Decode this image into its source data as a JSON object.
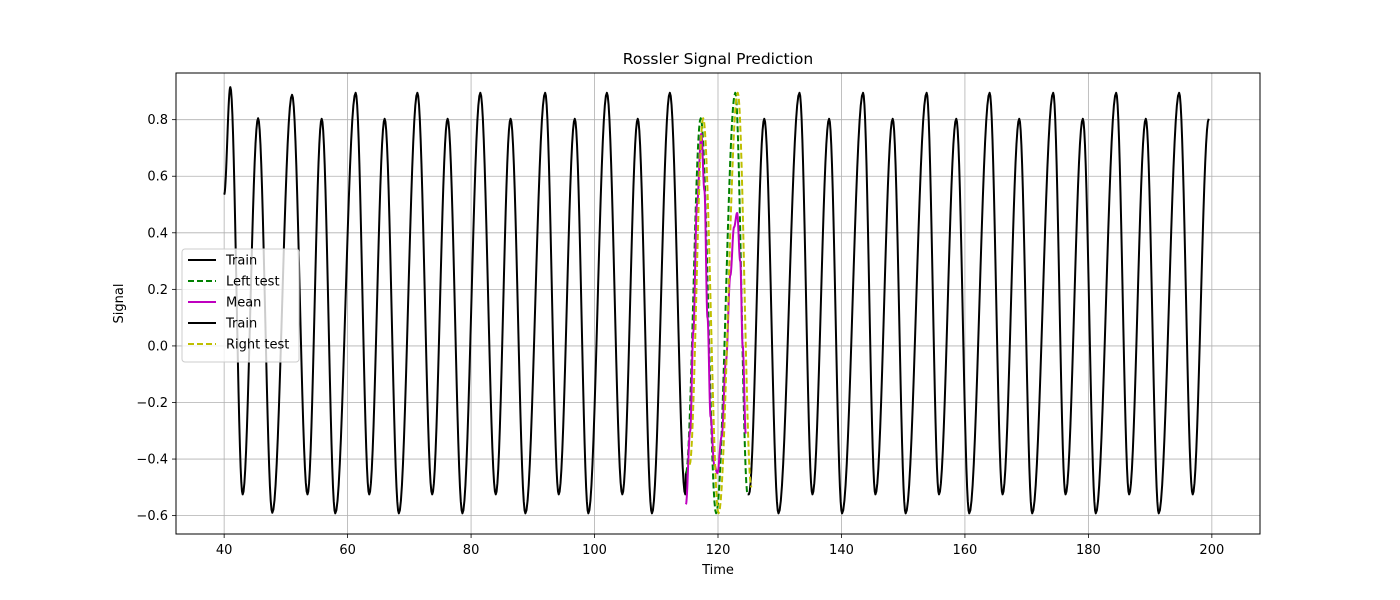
{
  "chart_data": {
    "type": "line",
    "title": "Rossler Signal Prediction",
    "xlabel": "Time",
    "ylabel": "Signal",
    "xlim": [
      32.2,
      207.8
    ],
    "ylim": [
      -0.665,
      0.965
    ],
    "xticks": [
      40,
      60,
      80,
      100,
      120,
      140,
      160,
      180,
      200
    ],
    "yticks": [
      -0.6,
      -0.4,
      -0.2,
      0.0,
      0.2,
      0.4,
      0.6,
      0.8
    ],
    "ytick_labels": [
      "−0.6",
      "−0.4",
      "−0.2",
      "0.0",
      "0.2",
      "0.4",
      "0.6",
      "0.8"
    ],
    "grid": true,
    "legend_position": "center-left",
    "oscillation": {
      "peaks": [
        [
          41,
          0.915
        ],
        [
          45.5,
          0.805
        ],
        [
          51,
          0.888
        ],
        [
          55.8,
          0.803
        ],
        [
          61.3,
          0.895
        ],
        [
          66,
          0.803
        ],
        [
          71.3,
          0.895
        ],
        [
          76.2,
          0.803
        ],
        [
          81.5,
          0.895
        ],
        [
          86.4,
          0.803
        ],
        [
          92,
          0.895
        ],
        [
          96.8,
          0.803
        ],
        [
          102,
          0.895
        ],
        [
          107,
          0.803
        ],
        [
          112.2,
          0.895
        ],
        [
          117.2,
          0.805
        ],
        [
          122.8,
          0.895
        ],
        [
          127.5,
          0.803
        ],
        [
          133.2,
          0.895
        ],
        [
          138,
          0.803
        ],
        [
          143.5,
          0.895
        ],
        [
          148.3,
          0.803
        ],
        [
          153.8,
          0.895
        ],
        [
          158.6,
          0.803
        ],
        [
          164,
          0.895
        ],
        [
          168.8,
          0.803
        ],
        [
          174.3,
          0.895
        ],
        [
          179.1,
          0.803
        ],
        [
          184.5,
          0.895
        ],
        [
          189.3,
          0.803
        ],
        [
          194.7,
          0.895
        ],
        [
          199.5,
          0.803
        ]
      ],
      "troughs": [
        [
          43,
          -0.525
        ],
        [
          47.8,
          -0.59
        ],
        [
          53.5,
          -0.525
        ],
        [
          58,
          -0.592
        ],
        [
          63.5,
          -0.525
        ],
        [
          68.3,
          -0.592
        ],
        [
          73.7,
          -0.525
        ],
        [
          78.6,
          -0.592
        ],
        [
          84,
          -0.525
        ],
        [
          88.8,
          -0.592
        ],
        [
          94.2,
          -0.525
        ],
        [
          99,
          -0.592
        ],
        [
          104.5,
          -0.525
        ],
        [
          109.3,
          -0.592
        ],
        [
          114.7,
          -0.525
        ],
        [
          119.7,
          -0.592
        ],
        [
          125,
          -0.525
        ],
        [
          129.8,
          -0.592
        ],
        [
          135.3,
          -0.525
        ],
        [
          140.1,
          -0.592
        ],
        [
          145.5,
          -0.525
        ],
        [
          150.4,
          -0.592
        ],
        [
          155.8,
          -0.525
        ],
        [
          160.7,
          -0.592
        ],
        [
          166.1,
          -0.525
        ],
        [
          170.9,
          -0.592
        ],
        [
          176.3,
          -0.525
        ],
        [
          181.2,
          -0.592
        ],
        [
          186.6,
          -0.525
        ],
        [
          191.4,
          -0.592
        ],
        [
          196.9,
          -0.525
        ]
      ]
    },
    "series": [
      {
        "name": "Train",
        "color": "#000000",
        "dash": "solid",
        "x_range": [
          40,
          114.8
        ],
        "start": [
          40,
          0.535
        ],
        "end": [
          114.8,
          -0.45
        ]
      },
      {
        "name": "Left test",
        "color": "#008000",
        "dash": "dashed",
        "x_range": [
          114.8,
          124.8
        ],
        "start": [
          114.8,
          -0.45
        ],
        "end": [
          124.8,
          -0.525
        ]
      },
      {
        "name": "Mean",
        "color": "#bf00bf",
        "dash": "solid",
        "points": [
          [
            114.8,
            -0.56
          ],
          [
            115.5,
            -0.3
          ],
          [
            116,
            0.05
          ],
          [
            116.6,
            0.5
          ],
          [
            117.3,
            0.75
          ],
          [
            117.8,
            0.55
          ],
          [
            118.3,
            0.1
          ],
          [
            118.8,
            -0.25
          ],
          [
            119.4,
            -0.42
          ],
          [
            119.9,
            -0.45
          ],
          [
            120.6,
            -0.32
          ],
          [
            121.3,
            -0.05
          ],
          [
            122,
            0.25
          ],
          [
            122.6,
            0.42
          ],
          [
            123.1,
            0.47
          ],
          [
            123.6,
            0.3
          ],
          [
            124,
            0.0
          ],
          [
            124.5,
            -0.31
          ]
        ]
      },
      {
        "name": "Train",
        "color": "#000000",
        "dash": "solid",
        "x_range": [
          124.8,
          199.5
        ],
        "start": [
          124.8,
          -0.525
        ],
        "end": [
          199.5,
          0.803
        ]
      },
      {
        "name": "Right test",
        "color": "#bfbf00",
        "dash": "dashed",
        "x_range": [
          115,
          125
        ],
        "start": [
          115,
          -0.42
        ],
        "end": [
          125,
          -0.5
        ],
        "phase_offset": 0.4
      }
    ]
  }
}
